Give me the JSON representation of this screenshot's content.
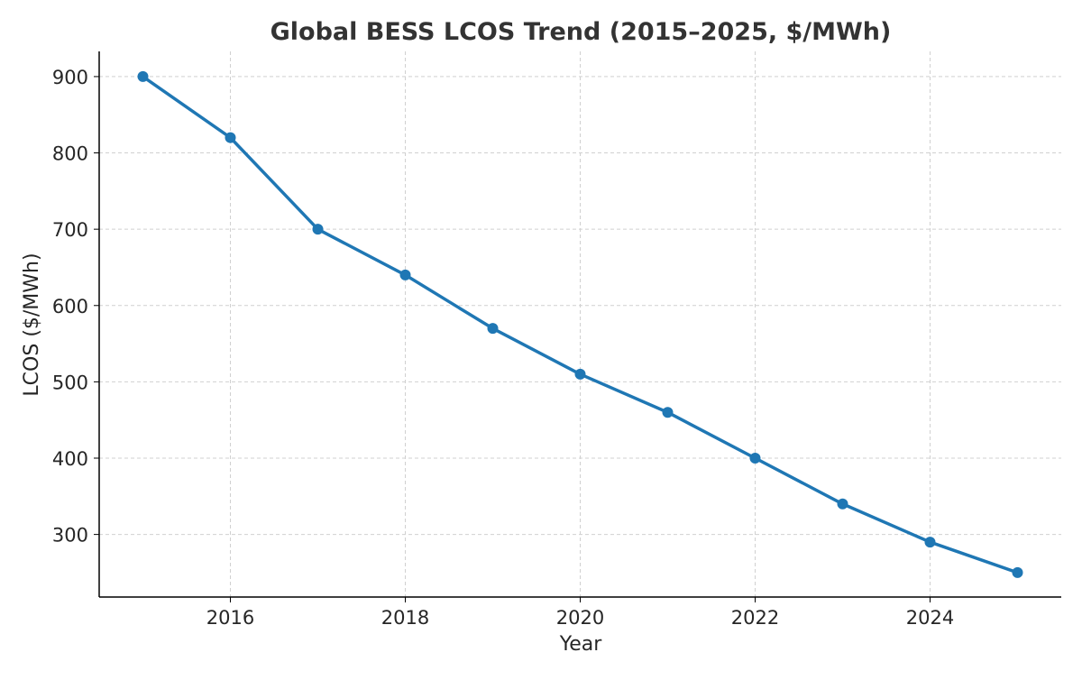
{
  "chart_data": {
    "type": "line",
    "title": "Global BESS LCOS Trend (2015–2025, $/MWh)",
    "xlabel": "Year",
    "ylabel": "LCOS ($/MWh)",
    "x": [
      2015,
      2016,
      2017,
      2018,
      2019,
      2020,
      2021,
      2022,
      2023,
      2024,
      2025
    ],
    "series": [
      {
        "values": [
          900,
          820,
          700,
          640,
          570,
          510,
          460,
          400,
          340,
          290,
          250
        ],
        "color": "#1f77b4",
        "marker": "circle"
      }
    ],
    "xticks": [
      "2016",
      "2018",
      "2020",
      "2022",
      "2024"
    ],
    "yticks": [
      "300",
      "400",
      "500",
      "600",
      "700",
      "800",
      "900"
    ],
    "xlim": [
      2014.5,
      2025.5
    ],
    "ylim": [
      218,
      933
    ],
    "grid": true,
    "grid_style": "dashed"
  }
}
